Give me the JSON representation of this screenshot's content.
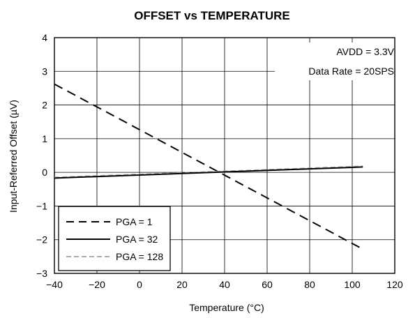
{
  "chart_data": {
    "type": "line",
    "title": "OFFSET vs TEMPERATURE",
    "xlabel": "Temperature (°C)",
    "ylabel": "Input-Referred Offset (µV)",
    "xlim": [
      -40,
      120
    ],
    "ylim": [
      -3,
      4
    ],
    "xticks": [
      -40,
      -20,
      0,
      20,
      40,
      60,
      80,
      100,
      120
    ],
    "yticks": [
      -3,
      -2,
      -1,
      0,
      1,
      2,
      3,
      4
    ],
    "xtick_labels": [
      "−40",
      "−20",
      "0",
      "20",
      "40",
      "60",
      "80",
      "100",
      "120"
    ],
    "ytick_labels": [
      "−3",
      "−2",
      "−1",
      "0",
      "1",
      "2",
      "3",
      "4"
    ],
    "grid": true,
    "legend_placement": "bottom-left",
    "annotations": [
      "AVDD = 3.3V",
      "Data Rate = 20SPS"
    ],
    "series": [
      {
        "name": "PGA = 1",
        "style": "dashed",
        "color": "#000000",
        "x": [
          -40,
          105
        ],
        "y": [
          2.62,
          -2.28
        ]
      },
      {
        "name": "PGA = 32",
        "style": "solid",
        "color": "#000000",
        "x": [
          -40,
          105
        ],
        "y": [
          -0.17,
          0.16
        ]
      },
      {
        "name": "PGA = 128",
        "style": "dashed",
        "color": "#aaaaaa",
        "x": [
          -40,
          105
        ],
        "y": [
          -0.15,
          0.18
        ]
      }
    ]
  }
}
